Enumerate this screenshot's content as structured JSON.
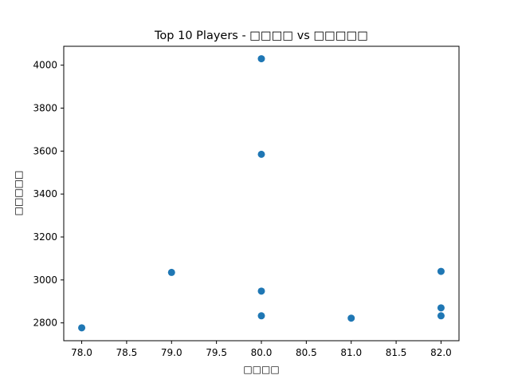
{
  "chart_data": {
    "type": "scatter",
    "title": "Top 10 Players - □□□□ vs □□□□□",
    "xlabel": "□□□□",
    "ylabel": "□□□□□",
    "xlim": [
      77.8,
      82.2
    ],
    "ylim": [
      2717,
      4088
    ],
    "x_ticks": [
      78.0,
      78.5,
      79.0,
      79.5,
      80.0,
      80.5,
      81.0,
      81.5,
      82.0
    ],
    "x_tick_labels": [
      "78.0",
      "78.5",
      "79.0",
      "79.5",
      "80.0",
      "80.5",
      "81.0",
      "81.5",
      "82.0"
    ],
    "y_ticks": [
      2800,
      3000,
      3200,
      3400,
      3600,
      3800,
      4000
    ],
    "y_tick_labels": [
      "2800",
      "3000",
      "3200",
      "3400",
      "3600",
      "3800",
      "4000"
    ],
    "grid": false,
    "marker_color": "#1f77b4",
    "points": [
      {
        "x": 80,
        "y": 4030
      },
      {
        "x": 80,
        "y": 3585
      },
      {
        "x": 79,
        "y": 3035
      },
      {
        "x": 82,
        "y": 3040
      },
      {
        "x": 80,
        "y": 2948
      },
      {
        "x": 82,
        "y": 2870
      },
      {
        "x": 80,
        "y": 2833
      },
      {
        "x": 82,
        "y": 2833
      },
      {
        "x": 81,
        "y": 2822
      },
      {
        "x": 78,
        "y": 2777
      }
    ]
  }
}
